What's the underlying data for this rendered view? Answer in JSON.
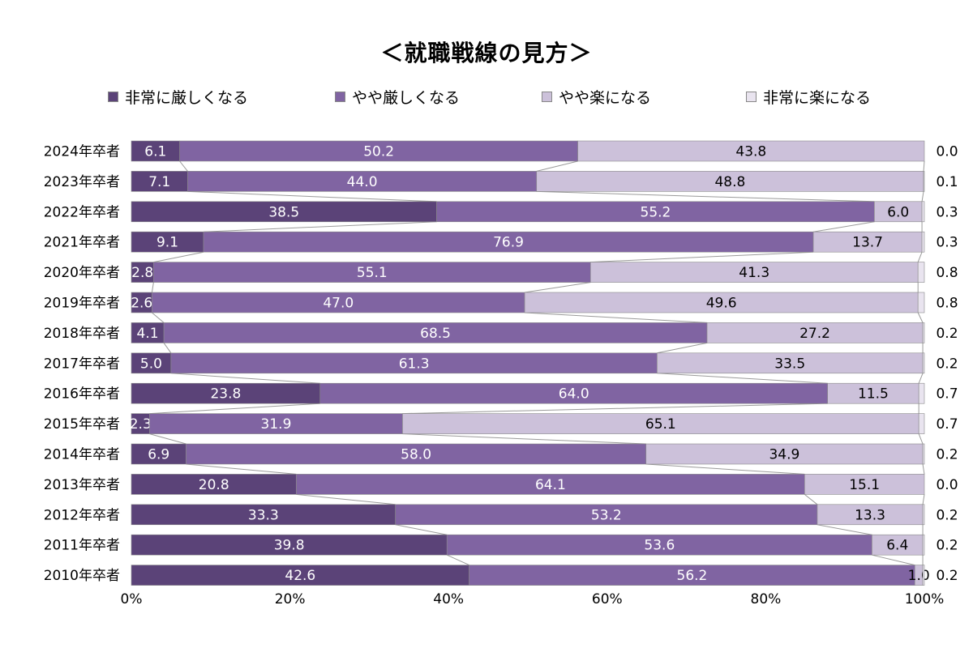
{
  "chart_data": {
    "type": "bar",
    "orientation": "horizontal",
    "stacked": "100%",
    "title": "＜就職戦線の見方＞",
    "categories": [
      "2024年卒者",
      "2023年卒者",
      "2022年卒者",
      "2021年卒者",
      "2020年卒者",
      "2019年卒者",
      "2018年卒者",
      "2017年卒者",
      "2016年卒者",
      "2015年卒者",
      "2014年卒者",
      "2013年卒者",
      "2012年卒者",
      "2011年卒者",
      "2010年卒者"
    ],
    "series": [
      {
        "name": "非常に厳しくなる",
        "color": "#5b4378",
        "label_color": "#ffffff",
        "values": [
          6.1,
          7.1,
          38.5,
          9.1,
          2.8,
          2.6,
          4.1,
          5.0,
          23.8,
          2.3,
          6.9,
          20.8,
          33.3,
          39.8,
          42.6
        ],
        "labels": [
          "6.1",
          "7.1",
          "38.5",
          "9.1",
          "2.8",
          "2.6",
          "4.1",
          "5.0",
          "23.8",
          "2.3",
          "6.9",
          "20.8",
          "33.3",
          "39.8",
          "42.6"
        ]
      },
      {
        "name": "やや厳しくなる",
        "color": "#8064a2",
        "label_color": "#ffffff",
        "values": [
          50.2,
          44.0,
          55.2,
          76.9,
          55.1,
          47.0,
          68.5,
          61.3,
          64.0,
          31.9,
          58.0,
          64.1,
          53.2,
          53.6,
          56.2
        ],
        "labels": [
          "50.2",
          "44.0",
          "55.2",
          "76.9",
          "55.1",
          "47.0",
          "68.5",
          "61.3",
          "64.0",
          "31.9",
          "58.0",
          "64.1",
          "53.2",
          "53.6",
          "56.2"
        ]
      },
      {
        "name": "やや楽になる",
        "color": "#ccc1da",
        "label_color": "#000000",
        "values": [
          43.8,
          48.8,
          6.0,
          13.7,
          41.3,
          49.6,
          27.2,
          33.5,
          11.5,
          65.1,
          34.9,
          15.1,
          13.3,
          6.4,
          1.0
        ],
        "labels": [
          "43.8",
          "48.8",
          "6.0",
          "13.7",
          "41.3",
          "49.6",
          "27.2",
          "33.5",
          "11.5",
          "65.1",
          "34.9",
          "15.1",
          "13.3",
          "6.4",
          "1.0"
        ]
      },
      {
        "name": "非常に楽になる",
        "color": "#e9e4ef",
        "label_color": "#000000",
        "values": [
          0.0,
          0.1,
          0.3,
          0.3,
          0.8,
          0.8,
          0.2,
          0.2,
          0.7,
          0.7,
          0.2,
          0.0,
          0.2,
          0.2,
          0.2
        ],
        "labels": [
          "0.0",
          "0.1",
          "0.3",
          "0.3",
          "0.8",
          "0.8",
          "0.2",
          "0.2",
          "0.7",
          "0.7",
          "0.2",
          "0.0",
          "0.2",
          "0.2",
          "0.2"
        ]
      }
    ],
    "xlim": [
      0,
      100
    ],
    "xticks": [
      "0%",
      "20%",
      "40%",
      "60%",
      "80%",
      "100%"
    ],
    "legend_position": "top",
    "grid": false
  }
}
